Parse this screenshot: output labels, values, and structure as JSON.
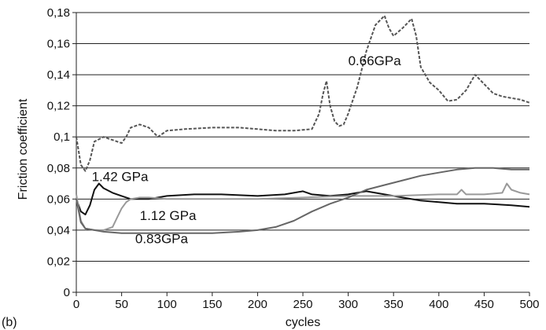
{
  "panel_label": "(b)",
  "chart_data": {
    "type": "line",
    "xlabel": "cycles",
    "ylabel": "Friction coefficient",
    "xlim": [
      0,
      500
    ],
    "ylim": [
      0,
      0.18
    ],
    "x_ticks": [
      0,
      50,
      100,
      150,
      200,
      250,
      300,
      350,
      400,
      450,
      500
    ],
    "x_tick_labels": [
      "0",
      "50",
      "100",
      "150",
      "200",
      "250",
      "300",
      "350",
      "400",
      "450",
      "500"
    ],
    "y_ticks": [
      0,
      0.02,
      0.04,
      0.06,
      0.08,
      0.1,
      0.12,
      0.14,
      0.16,
      0.18
    ],
    "y_tick_labels": [
      "0",
      "0,02",
      "0,04",
      "0,06",
      "0,08",
      "0,1",
      "0,12",
      "0,14",
      "0,16",
      "0,18"
    ],
    "grid": "horizontal",
    "series": [
      {
        "name": "0.66GPa",
        "color": "#555555",
        "dashed": true,
        "x": [
          0,
          5,
          10,
          15,
          20,
          30,
          40,
          50,
          55,
          60,
          70,
          80,
          90,
          100,
          120,
          150,
          180,
          200,
          220,
          240,
          260,
          268,
          272,
          276,
          280,
          285,
          290,
          295,
          300,
          310,
          320,
          330,
          340,
          345,
          350,
          360,
          370,
          375,
          380,
          390,
          400,
          410,
          420,
          430,
          440,
          450,
          460,
          470,
          480,
          490,
          500
        ],
        "y": [
          0.1,
          0.082,
          0.078,
          0.085,
          0.097,
          0.1,
          0.098,
          0.096,
          0.1,
          0.106,
          0.108,
          0.106,
          0.1,
          0.104,
          0.105,
          0.106,
          0.106,
          0.105,
          0.104,
          0.104,
          0.105,
          0.115,
          0.127,
          0.136,
          0.12,
          0.11,
          0.107,
          0.108,
          0.115,
          0.132,
          0.155,
          0.172,
          0.178,
          0.17,
          0.165,
          0.17,
          0.176,
          0.165,
          0.145,
          0.135,
          0.13,
          0.123,
          0.124,
          0.13,
          0.14,
          0.134,
          0.128,
          0.126,
          0.125,
          0.124,
          0.122
        ]
      },
      {
        "name": "1.42 GPa",
        "color": "#111111",
        "dashed": false,
        "x": [
          0,
          5,
          10,
          15,
          20,
          25,
          30,
          40,
          50,
          60,
          80,
          100,
          130,
          160,
          200,
          230,
          250,
          260,
          280,
          300,
          320,
          340,
          360,
          380,
          400,
          420,
          450,
          480,
          500
        ],
        "y": [
          0.06,
          0.052,
          0.05,
          0.056,
          0.066,
          0.07,
          0.067,
          0.064,
          0.062,
          0.06,
          0.06,
          0.062,
          0.063,
          0.063,
          0.062,
          0.063,
          0.065,
          0.063,
          0.062,
          0.063,
          0.065,
          0.063,
          0.061,
          0.059,
          0.058,
          0.057,
          0.057,
          0.056,
          0.055
        ]
      },
      {
        "name": "1.12 GPa",
        "color": "#999999",
        "dashed": false,
        "x": [
          0,
          5,
          10,
          20,
          30,
          40,
          45,
          50,
          55,
          60,
          70,
          80,
          100,
          150,
          200,
          250,
          300,
          350,
          400,
          420,
          425,
          430,
          450,
          470,
          475,
          480,
          490,
          500
        ],
        "y": [
          0.063,
          0.046,
          0.041,
          0.04,
          0.04,
          0.042,
          0.048,
          0.054,
          0.058,
          0.06,
          0.061,
          0.061,
          0.06,
          0.06,
          0.06,
          0.061,
          0.062,
          0.062,
          0.063,
          0.063,
          0.066,
          0.063,
          0.063,
          0.064,
          0.07,
          0.066,
          0.064,
          0.063
        ]
      },
      {
        "name": "0.83GPa",
        "color": "#666666",
        "dashed": false,
        "x": [
          0,
          5,
          10,
          20,
          30,
          50,
          100,
          150,
          180,
          200,
          220,
          240,
          260,
          280,
          300,
          320,
          340,
          360,
          380,
          400,
          420,
          440,
          460,
          480,
          500
        ],
        "y": [
          0.06,
          0.045,
          0.041,
          0.04,
          0.039,
          0.038,
          0.038,
          0.038,
          0.039,
          0.04,
          0.042,
          0.046,
          0.052,
          0.057,
          0.061,
          0.066,
          0.069,
          0.072,
          0.075,
          0.077,
          0.079,
          0.08,
          0.08,
          0.079,
          0.079
        ]
      }
    ],
    "annotations": [
      {
        "text": "0.66GPa",
        "x": 300,
        "y": 0.146
      },
      {
        "text": "1.42 GPa",
        "x": 17,
        "y": 0.0716
      },
      {
        "text": "1.12 GPa",
        "x": 70,
        "y": 0.0466
      },
      {
        "text": "0.83GPa",
        "x": 65,
        "y": 0.0316
      }
    ]
  }
}
